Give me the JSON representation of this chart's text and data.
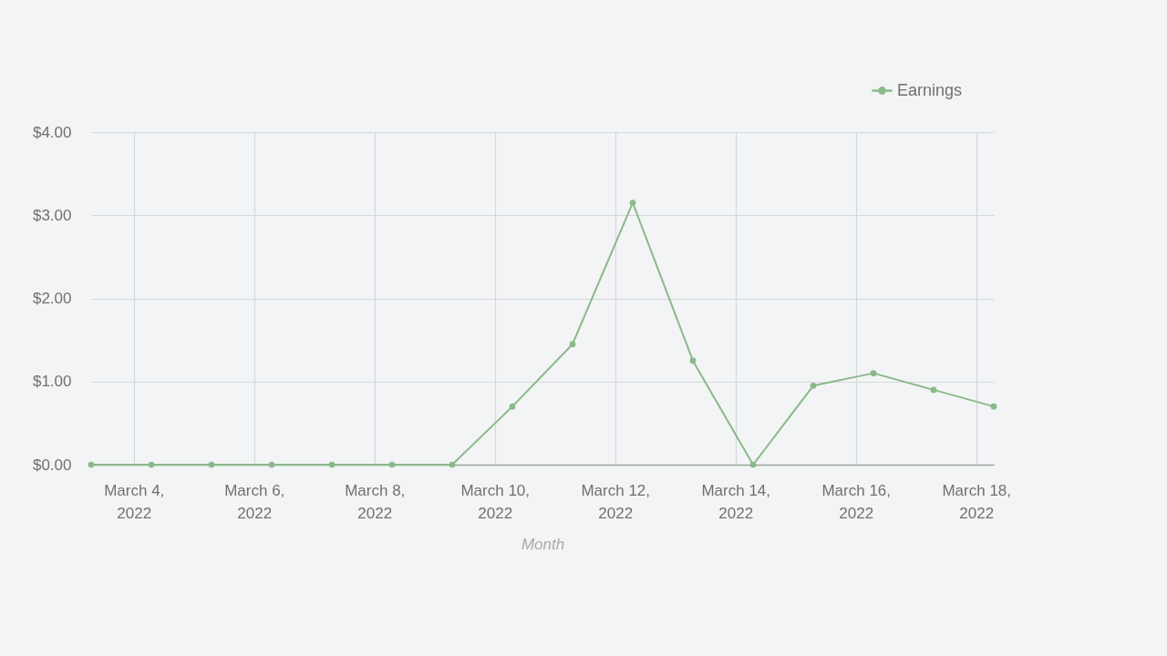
{
  "chart_data": {
    "type": "line",
    "xlabel": "Month",
    "x": [
      "2022-03-03T07:00",
      "2022-03-04T07:00",
      "2022-03-05T07:00",
      "2022-03-06T07:00",
      "2022-03-07T07:00",
      "2022-03-08T07:00",
      "2022-03-09T07:00",
      "2022-03-10T07:00",
      "2022-03-11T07:00",
      "2022-03-12T07:00",
      "2022-03-13T07:00",
      "2022-03-14T07:00",
      "2022-03-15T07:00",
      "2022-03-16T07:00",
      "2022-03-17T07:00",
      "2022-03-18T07:00"
    ],
    "series": [
      {
        "name": "Earnings",
        "color": "#8ab98a",
        "values": [
          0,
          0,
          0,
          0,
          0,
          0,
          0,
          0.7,
          1.45,
          3.15,
          1.25,
          0,
          0.95,
          1.1,
          0.9,
          0.7
        ]
      }
    ],
    "xlim": [
      "2022-03-03T07:00",
      "2022-03-18T07:00"
    ],
    "xticks": [
      {
        "value": "2022-03-04",
        "label": "March 4, 2022"
      },
      {
        "value": "2022-03-06",
        "label": "March 6, 2022"
      },
      {
        "value": "2022-03-08",
        "label": "March 8, 2022"
      },
      {
        "value": "2022-03-10",
        "label": "March 10, 2022"
      },
      {
        "value": "2022-03-12",
        "label": "March 12, 2022"
      },
      {
        "value": "2022-03-14",
        "label": "March 14, 2022"
      },
      {
        "value": "2022-03-16",
        "label": "March 16, 2022"
      },
      {
        "value": "2022-03-18",
        "label": "March 18, 2022"
      }
    ],
    "ylim": [
      0,
      4
    ],
    "yticks": [
      {
        "value": 0,
        "label": "$0.00"
      },
      {
        "value": 1,
        "label": "$1.00"
      },
      {
        "value": 2,
        "label": "$2.00"
      },
      {
        "value": 3,
        "label": "$3.00"
      },
      {
        "value": 4,
        "label": "$4.00"
      }
    ],
    "grid": true,
    "legend": "top right",
    "marker": "circle"
  }
}
